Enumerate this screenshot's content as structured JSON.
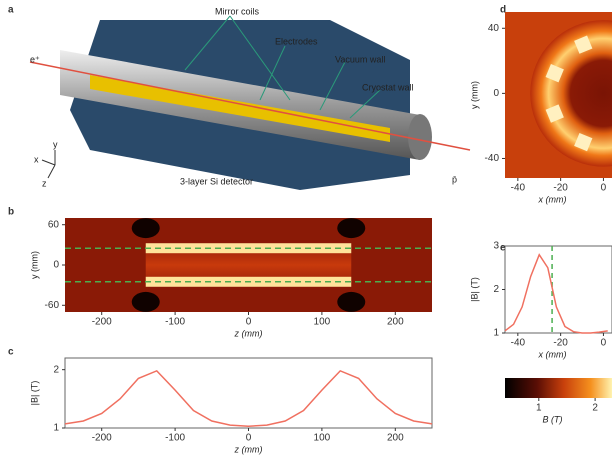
{
  "diagram": {
    "panel": "a",
    "labels": [
      "Mirror coils",
      "Electrodes",
      "Vacuum wall",
      "Cryostat wall",
      "3-layer Si detector",
      "e⁺",
      "p̄"
    ],
    "axes": [
      "y",
      "x",
      "z"
    ]
  },
  "chart_data": [
    {
      "type": "heatmap",
      "panel": "b",
      "xlabel": "z (mm)",
      "ylabel": "y (mm)",
      "xlim": [
        -250,
        250
      ],
      "ylim": [
        -70,
        70
      ],
      "xticks": [
        -200,
        -100,
        0,
        100,
        200
      ],
      "yticks": [
        -60,
        0,
        60
      ],
      "guides": [
        -25,
        25
      ],
      "guide_color": "#4caf50"
    },
    {
      "type": "line",
      "panel": "c",
      "xlabel": "z (mm)",
      "ylabel": "|B| (T)",
      "xlim": [
        -250,
        250
      ],
      "ylim": [
        1,
        2.2
      ],
      "xticks": [
        -200,
        -100,
        0,
        100,
        200
      ],
      "yticks": [
        1,
        2
      ],
      "x": [
        -250,
        -225,
        -200,
        -175,
        -150,
        -125,
        -100,
        -75,
        -50,
        -25,
        0,
        25,
        50,
        75,
        100,
        125,
        150,
        175,
        200,
        225,
        250
      ],
      "series": [
        {
          "color": "#f07060",
          "values": [
            1.07,
            1.12,
            1.25,
            1.5,
            1.85,
            1.98,
            1.65,
            1.3,
            1.12,
            1.05,
            1.03,
            1.05,
            1.12,
            1.3,
            1.65,
            1.98,
            1.85,
            1.5,
            1.25,
            1.12,
            1.07
          ]
        }
      ]
    },
    {
      "type": "heatmap",
      "panel": "d",
      "xlabel": "x (mm)",
      "ylabel": "y (mm)",
      "xlim": [
        -46,
        4
      ],
      "ylim": [
        -52,
        50
      ],
      "xticks": [
        -40,
        -20,
        0
      ],
      "yticks": [
        -40,
        0,
        40
      ]
    },
    {
      "type": "line",
      "panel": "e",
      "xlabel": "x (mm)",
      "ylabel": "|B| (T)",
      "xlim": [
        -46,
        4
      ],
      "ylim": [
        1,
        3
      ],
      "xticks": [
        -40,
        -20,
        0
      ],
      "yticks": [
        1,
        2,
        3
      ],
      "vline": -24,
      "guide_color": "#4caf50",
      "x": [
        -46,
        -42,
        -38,
        -34,
        -30,
        -26,
        -22,
        -18,
        -14,
        -10,
        -6,
        -2,
        2
      ],
      "series": [
        {
          "color": "#f07060",
          "values": [
            1.05,
            1.2,
            1.6,
            2.3,
            2.8,
            2.5,
            1.6,
            1.15,
            1.03,
            1.0,
            1.0,
            1.02,
            1.05
          ]
        }
      ]
    },
    {
      "type": "colorbar",
      "xlabel": "B (T)",
      "xlim": [
        0.4,
        2.3
      ],
      "xticks": [
        1,
        2
      ]
    }
  ]
}
